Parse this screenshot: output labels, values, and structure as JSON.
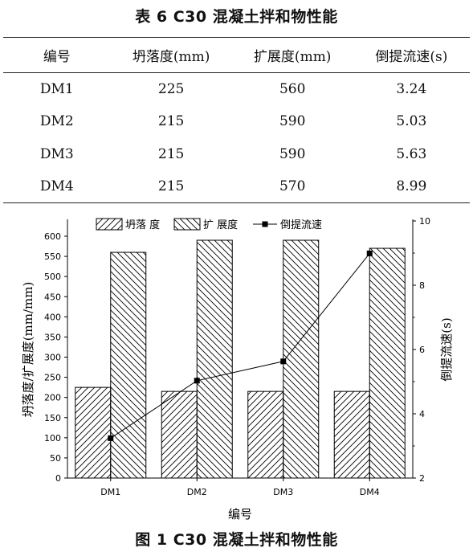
{
  "table": {
    "title": "表 6   C30 混凝土拌和物性能",
    "headers": [
      "编号",
      "坍落度(mm)",
      "扩展度(mm)",
      "倒提流速(s)"
    ],
    "rows": [
      [
        "DM1",
        "225",
        "560",
        "3.24"
      ],
      [
        "DM2",
        "215",
        "590",
        "5.03"
      ],
      [
        "DM3",
        "215",
        "590",
        "5.63"
      ],
      [
        "DM4",
        "215",
        "570",
        "8.99"
      ]
    ]
  },
  "figure_caption": "图 1   C30 混凝土拌和物性能",
  "chart_data": {
    "type": "bar",
    "categories": [
      "DM1",
      "DM2",
      "DM3",
      "DM4"
    ],
    "series": [
      {
        "name": "坍落 度",
        "kind": "bar",
        "axis": "left",
        "hatch": "forward",
        "values": [
          225,
          215,
          215,
          215
        ]
      },
      {
        "name": "扩 展度",
        "kind": "bar",
        "axis": "left",
        "hatch": "backward",
        "values": [
          560,
          590,
          590,
          570
        ]
      },
      {
        "name": "倒提流速",
        "kind": "line",
        "axis": "right",
        "marker": "square",
        "values": [
          3.24,
          5.03,
          5.63,
          8.99
        ]
      }
    ],
    "xlabel": "编号",
    "ylabel_left": "坍落度/扩展度(mm/mm)",
    "ylabel_right": "倒提流速(s)",
    "ylim_left": [
      0,
      620
    ],
    "yticks_left": [
      0,
      50,
      100,
      150,
      200,
      250,
      300,
      350,
      400,
      450,
      500,
      550,
      600
    ],
    "ylim_right": [
      2,
      10
    ],
    "yticks_right": [
      2,
      4,
      6,
      8,
      10
    ],
    "grid": false,
    "legend_position": "top-center",
    "colors": {
      "line": "#000000",
      "bar_stroke": "#000000",
      "hatch": "#000000"
    }
  }
}
